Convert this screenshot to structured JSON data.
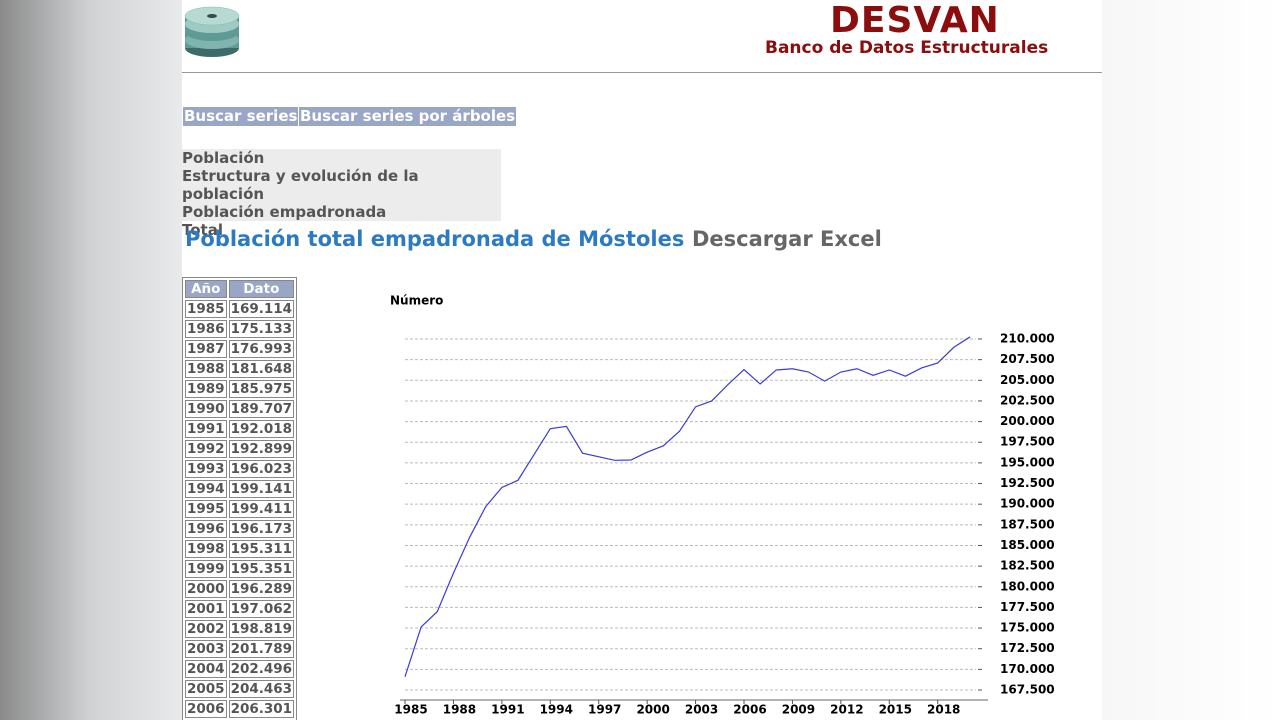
{
  "header": {
    "brand": "DESVAN",
    "subtitle": "Banco de Datos Estructurales"
  },
  "nav": [
    "Buscar series",
    "Buscar series por árboles"
  ],
  "breadcrumb": [
    "Población",
    "Estructura y evolución de la población",
    "Población empadronada",
    "Total"
  ],
  "page_title": "Población total empadronada de Móstoles",
  "download": "Descargar Excel",
  "table": {
    "columns": [
      "Año",
      "Dato"
    ],
    "rows": [
      [
        "1985",
        "169.114"
      ],
      [
        "1986",
        "175.133"
      ],
      [
        "1987",
        "176.993"
      ],
      [
        "1988",
        "181.648"
      ],
      [
        "1989",
        "185.975"
      ],
      [
        "1990",
        "189.707"
      ],
      [
        "1991",
        "192.018"
      ],
      [
        "1992",
        "192.899"
      ],
      [
        "1993",
        "196.023"
      ],
      [
        "1994",
        "199.141"
      ],
      [
        "1995",
        "199.411"
      ],
      [
        "1996",
        "196.173"
      ],
      [
        "1998",
        "195.311"
      ],
      [
        "1999",
        "195.351"
      ],
      [
        "2000",
        "196.289"
      ],
      [
        "2001",
        "197.062"
      ],
      [
        "2002",
        "198.819"
      ],
      [
        "2003",
        "201.789"
      ],
      [
        "2004",
        "202.496"
      ],
      [
        "2005",
        "204.463"
      ],
      [
        "2006",
        "206.301"
      ]
    ]
  },
  "chart_data": {
    "type": "line",
    "y_label": "Número",
    "color": "#3b3bdc",
    "grid": true,
    "x": [
      1985,
      1986,
      1987,
      1988,
      1989,
      1990,
      1991,
      1992,
      1993,
      1994,
      1995,
      1996,
      1998,
      1999,
      2000,
      2001,
      2002,
      2003,
      2004,
      2005,
      2006,
      2007,
      2008,
      2009,
      2010,
      2011,
      2012,
      2013,
      2014,
      2015,
      2016,
      2017,
      2018,
      2019,
      2020
    ],
    "series": [
      {
        "name": "Población",
        "color": "#3b3bdc",
        "values": [
          169114,
          175133,
          176993,
          181648,
          185975,
          189707,
          192018,
          192899,
          196023,
          199141,
          199411,
          196173,
          195311,
          195351,
          196289,
          197062,
          198819,
          201789,
          202496,
          204463,
          206301,
          204550,
          206250,
          206400,
          206000,
          204900,
          206000,
          206400,
          205600,
          206250,
          205500,
          206500,
          207100,
          209000,
          210250
        ]
      }
    ],
    "xlim": [
      1985,
      2020
    ],
    "xticks": [
      1985,
      1988,
      1991,
      1994,
      1997,
      2000,
      2003,
      2006,
      2009,
      2012,
      2015,
      2018
    ],
    "ylim": [
      167500,
      210000
    ],
    "yticks": [
      {
        "value": 167500,
        "label": "167.500"
      },
      {
        "value": 170000,
        "label": "170.000"
      },
      {
        "value": 172500,
        "label": "172.500"
      },
      {
        "value": 175000,
        "label": "175.000"
      },
      {
        "value": 177500,
        "label": "177.500"
      },
      {
        "value": 180000,
        "label": "180.000"
      },
      {
        "value": 182500,
        "label": "182.500"
      },
      {
        "value": 185000,
        "label": "185.000"
      },
      {
        "value": 187500,
        "label": "187.500"
      },
      {
        "value": 190000,
        "label": "190.000"
      },
      {
        "value": 192500,
        "label": "192.500"
      },
      {
        "value": 195000,
        "label": "195.000"
      },
      {
        "value": 197500,
        "label": "197.500"
      },
      {
        "value": 200000,
        "label": "200.000"
      },
      {
        "value": 202500,
        "label": "202.500"
      },
      {
        "value": 205000,
        "label": "205.000"
      },
      {
        "value": 207500,
        "label": "207.500"
      },
      {
        "value": 210000,
        "label": "210.000"
      }
    ]
  }
}
